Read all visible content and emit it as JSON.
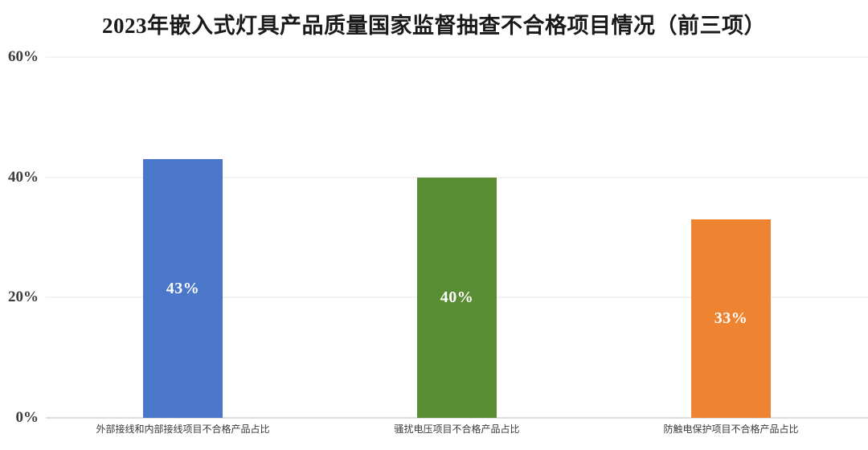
{
  "title": "2023年嵌入式灯具产品质量国家监督抽查不合格项目情况（前三项）",
  "colors": {
    "background": "#ffffff",
    "title_text": "#1a1a1a",
    "tick_text": "#3d3d3d",
    "category_text": "#3a3a3a",
    "value_text": "#ffffff",
    "gridline": "#f3f3f3",
    "axis_line": "#dcdcdc",
    "bar_blue": "#4A77C9",
    "bar_green": "#598D34",
    "bar_orange": "#EE8332"
  },
  "chart_data": {
    "type": "bar",
    "title": "2023年嵌入式灯具产品质量国家监督抽查不合格项目情况（前三项）",
    "categories": [
      "外部接线和内部接线项目不合格产品占比",
      "骚扰电压项目不合格产品占比",
      "防触电保护项目不合格产品占比"
    ],
    "values": [
      43,
      40,
      33
    ],
    "value_labels": [
      "43%",
      "40%",
      "33%"
    ],
    "bar_colors": [
      "#4A77C9",
      "#598D34",
      "#EE8332"
    ],
    "xlabel": "",
    "ylabel": "",
    "ylim": [
      0,
      60
    ],
    "ytick_values": [
      60,
      40,
      20,
      0
    ],
    "ytick_labels": [
      "60%",
      "40%",
      "20%",
      "0%"
    ],
    "grid": true,
    "legend": false
  }
}
